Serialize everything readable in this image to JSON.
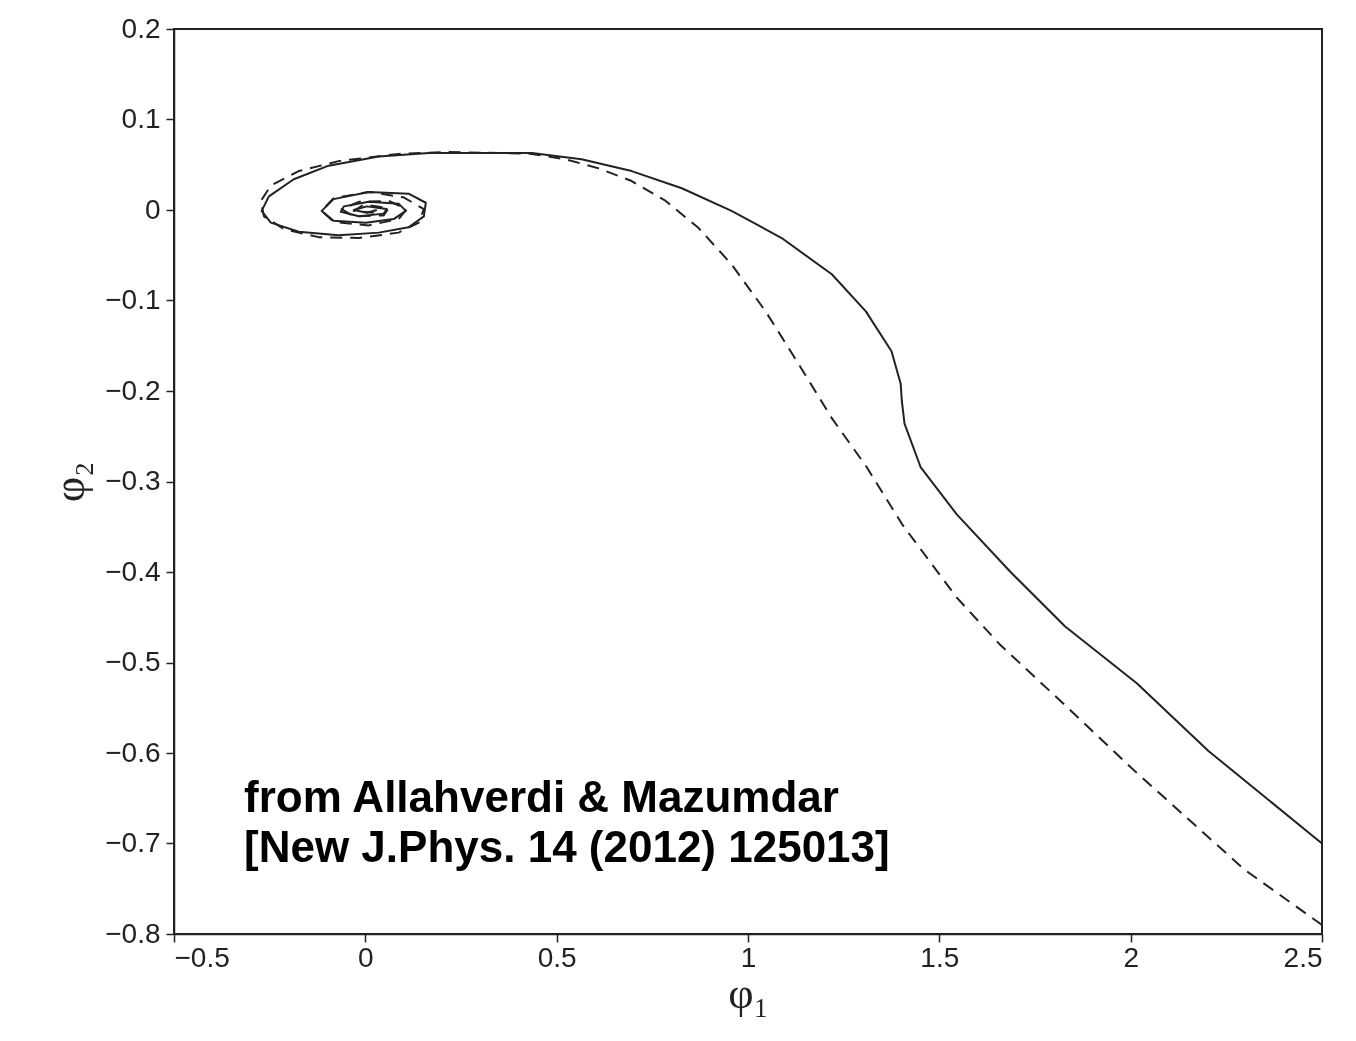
{
  "chart_data": {
    "type": "line",
    "xlabel": "φ₁",
    "ylabel": "φ₂",
    "xlim": [
      -0.5,
      2.5
    ],
    "ylim": [
      -0.8,
      0.2
    ],
    "xticks": [
      {
        "value": -0.5,
        "label": "−0.5"
      },
      0,
      0.5,
      1,
      1.5,
      2,
      2.5
    ],
    "yticks": [
      0.2,
      0.1,
      0,
      {
        "value": -0.1,
        "label": "−0.1"
      },
      {
        "value": -0.2,
        "label": "−0.2"
      },
      {
        "value": -0.3,
        "label": "−0.3"
      },
      {
        "value": -0.4,
        "label": "−0.4"
      },
      {
        "value": -0.5,
        "label": "−0.5"
      },
      {
        "value": -0.6,
        "label": "−0.6"
      },
      {
        "value": -0.7,
        "label": "−0.7"
      },
      {
        "value": -0.8,
        "label": "−0.8"
      }
    ],
    "grid": false,
    "series": [
      {
        "color": "#222222",
        "line_style": "solid",
        "x": [
          2.5,
          2.204,
          2.016,
          1.828,
          1.686,
          1.545,
          1.451,
          1.409,
          1.402,
          1.399,
          1.375,
          1.308,
          1.219,
          1.088,
          0.957,
          0.827,
          0.696,
          0.565,
          0.435,
          0.299,
          0.166,
          0.035,
          -0.096,
          -0.187,
          -0.252,
          -0.271,
          -0.247,
          -0.174,
          -0.07,
          0.035,
          0.113,
          0.153,
          0.158,
          0.113,
          0.009,
          -0.083,
          -0.114,
          -0.083,
          0.001,
          0.074,
          0.106,
          0.087,
          0.009,
          -0.056,
          -0.064,
          -0.017,
          0.048,
          0.056,
          0.004,
          -0.03,
          0.004,
          0.03
        ],
        "values": [
          -0.7,
          -0.598,
          -0.523,
          -0.46,
          -0.4,
          -0.336,
          -0.284,
          -0.236,
          -0.211,
          -0.192,
          -0.156,
          -0.112,
          -0.071,
          -0.031,
          -0.001,
          0.024,
          0.043,
          0.056,
          0.063,
          0.063,
          0.063,
          0.059,
          0.049,
          0.034,
          0.015,
          -0.001,
          -0.014,
          -0.024,
          -0.028,
          -0.025,
          -0.019,
          -0.007,
          0.008,
          0.018,
          0.02,
          0.012,
          -0.001,
          -0.012,
          -0.014,
          -0.01,
          -0.001,
          0.007,
          0.009,
          0.004,
          -0.002,
          -0.007,
          -0.004,
          0.001,
          0.004,
          0,
          -0.003,
          0
        ]
      },
      {
        "color": "#222222",
        "line_style": "dashed",
        "x": [
          2.5,
          2.298,
          2.016,
          1.828,
          1.658,
          1.545,
          1.404,
          1.31,
          1.219,
          1.132,
          1.046,
          0.957,
          0.871,
          0.785,
          0.696,
          0.61,
          0.524,
          0.435,
          0.349,
          0.218,
          0.087,
          -0.07,
          -0.174,
          -0.247,
          -0.273,
          -0.265,
          -0.213,
          -0.122,
          -0.017,
          0.087,
          0.14,
          0.153,
          0.1,
          0.009,
          -0.083,
          -0.114,
          -0.083,
          0.009,
          0.087,
          0.108,
          0.061,
          -0.017,
          -0.062,
          -0.03,
          0.048,
          0.061,
          -0.004,
          -0.03,
          0.022
        ],
        "values": [
          -0.79,
          -0.729,
          -0.622,
          -0.547,
          -0.48,
          -0.428,
          -0.348,
          -0.284,
          -0.23,
          -0.17,
          -0.112,
          -0.06,
          -0.02,
          0.01,
          0.032,
          0.046,
          0.056,
          0.062,
          0.063,
          0.064,
          0.062,
          0.054,
          0.043,
          0.027,
          0.01,
          -0.007,
          -0.021,
          -0.03,
          -0.031,
          -0.025,
          -0.014,
          0.001,
          0.014,
          0.02,
          0.013,
          -0.001,
          -0.013,
          -0.017,
          -0.01,
          0.001,
          0.01,
          0.009,
          0.001,
          -0.007,
          -0.006,
          0.002,
          0.006,
          -0.001,
          -0.003
        ]
      }
    ],
    "annotations": [
      "from Allahverdi & Mazumdar",
      "[New J.Phys. 14 (2012) 125013]"
    ]
  }
}
